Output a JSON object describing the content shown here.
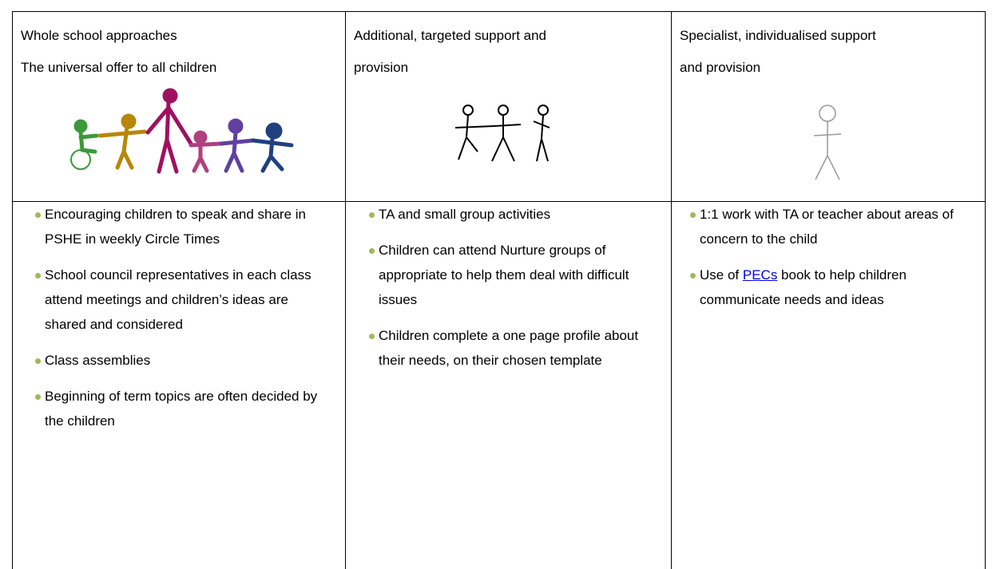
{
  "table": {
    "header": [
      [
        "Whole school approaches",
        "The universal offer to all children"
      ],
      [
        "Additional, targeted support and",
        "provision"
      ],
      [
        "Specialist, individualised support",
        "and provision"
      ]
    ],
    "body": [
      [
        "Encouraging children to speak and share in PSHE in weekly Circle Times",
        "School council representatives in each class attend meetings and children’s ideas are shared and considered",
        "Class assemblies",
        "Beginning of term topics are often decided by the children"
      ],
      [
        "TA and small group activities",
        "Children can attend Nurture groups of appropriate to help them deal with difficult issues",
        "Children complete a one page profile about their needs, on their chosen template"
      ],
      [
        "1:1 work with TA or teacher about areas of concern to the child",
        {
          "before": "Use of ",
          "link": "PECs",
          "after": " book to help children communicate needs and ideas"
        }
      ]
    ]
  }
}
